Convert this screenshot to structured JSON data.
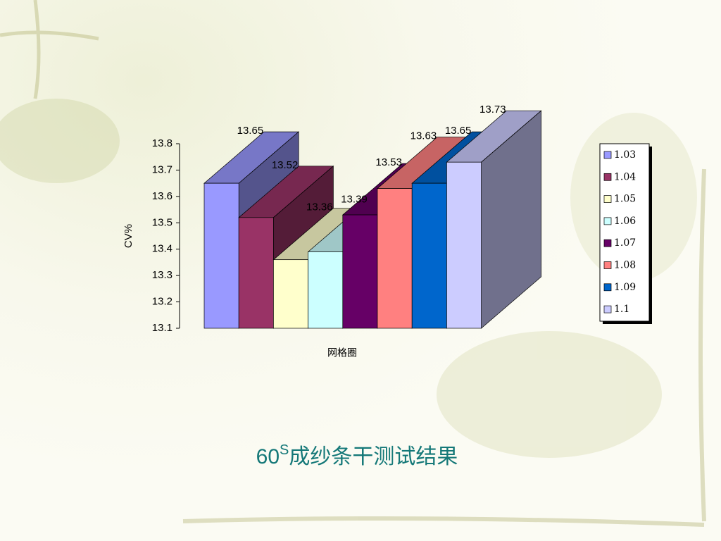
{
  "chart_data": {
    "type": "bar3d",
    "y_label": "CV%",
    "x_label": "网格圈",
    "ylim": [
      13.1,
      13.8
    ],
    "yticks": [
      13.1,
      13.2,
      13.3,
      13.4,
      13.5,
      13.6,
      13.7,
      13.8
    ],
    "legend": "right",
    "series": [
      {
        "name": "1.03",
        "color": "#9999ff",
        "values": [
          13.65
        ]
      },
      {
        "name": "1.04",
        "color": "#993366",
        "values": [
          13.52
        ]
      },
      {
        "name": "1.05",
        "color": "#ffffcc",
        "values": [
          13.36
        ]
      },
      {
        "name": "1.06",
        "color": "#ccffff",
        "values": [
          13.39
        ]
      },
      {
        "name": "1.07",
        "color": "#660066",
        "values": [
          13.53
        ]
      },
      {
        "name": "1.08",
        "color": "#ff8080",
        "values": [
          13.63
        ]
      },
      {
        "name": "1.09",
        "color": "#0066cc",
        "values": [
          13.65
        ]
      },
      {
        "name": "1.1",
        "color": "#ccccff",
        "values": [
          13.73
        ]
      }
    ]
  },
  "caption": {
    "number": "60",
    "superscript": "S",
    "text": "成纱条干测试结果"
  }
}
